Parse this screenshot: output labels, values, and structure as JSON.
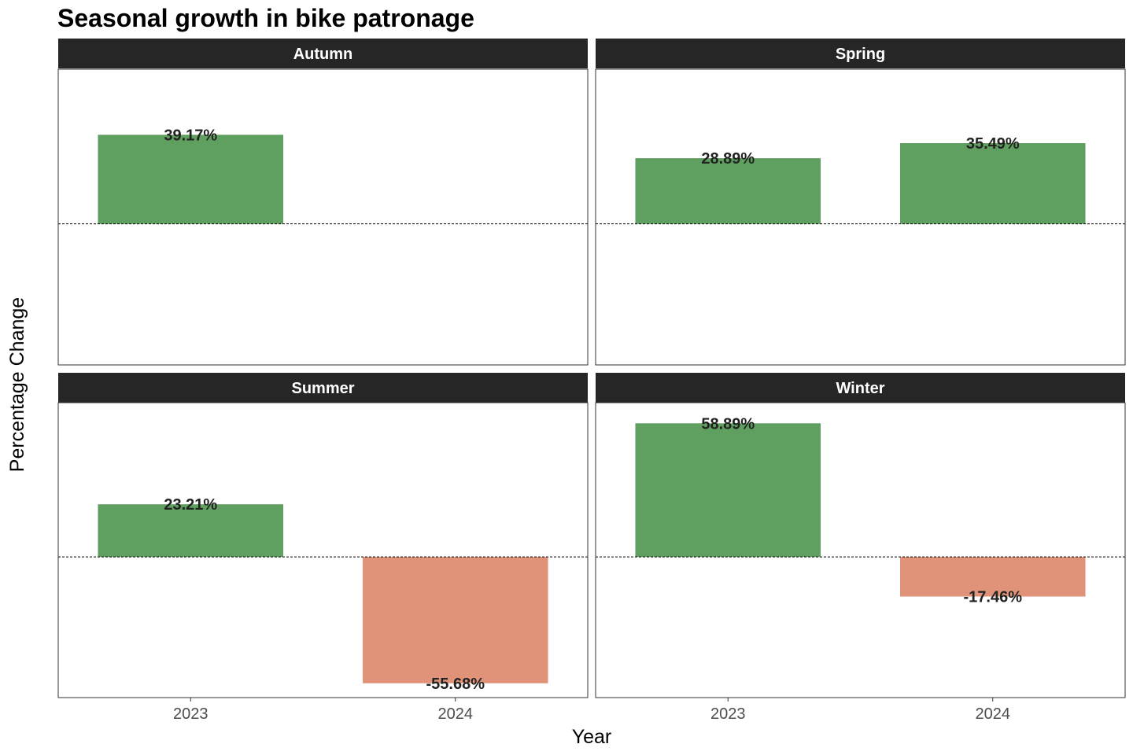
{
  "chart_data": {
    "type": "bar",
    "title": "Seasonal growth in bike patronage",
    "xlabel": "Year",
    "ylabel": "Percentage Change",
    "categories": [
      "2023",
      "2024"
    ],
    "ylim": [
      -62,
      68
    ],
    "reference_line": 0,
    "grid": false,
    "legend": "none",
    "facets": [
      {
        "name": "Autumn",
        "values": [
          39.17,
          null
        ],
        "labels": [
          "39.17%",
          null
        ]
      },
      {
        "name": "Spring",
        "values": [
          28.89,
          35.49
        ],
        "labels": [
          "28.89%",
          "35.49%"
        ]
      },
      {
        "name": "Summer",
        "values": [
          23.21,
          -55.68
        ],
        "labels": [
          "23.21%",
          "-55.68%"
        ]
      },
      {
        "name": "Winter",
        "values": [
          58.89,
          -17.46
        ],
        "labels": [
          "58.89%",
          "-17.46%"
        ]
      }
    ],
    "colors": {
      "positive": "#5f9f5f",
      "negative": "#e1937a",
      "strip_background": "#262626",
      "panel_border": "#333333"
    }
  }
}
